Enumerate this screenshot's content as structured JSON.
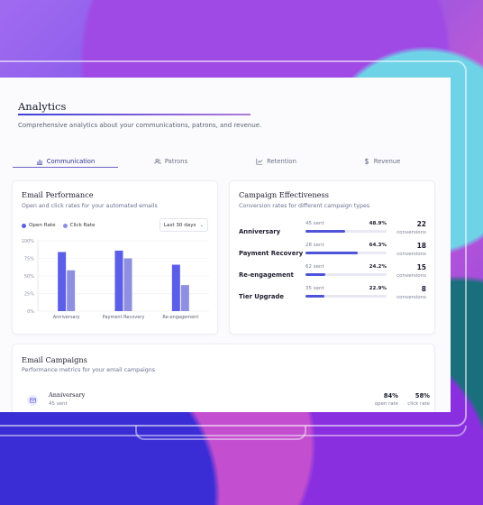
{
  "page": {
    "title": "Analytics",
    "subtitle": "Comprehensive analytics about your communications, patrons, and revenue."
  },
  "tabs": [
    {
      "label": "Communication",
      "icon": "bar-chart-icon",
      "active": true
    },
    {
      "label": "Patrons",
      "icon": "users-icon",
      "active": false
    },
    {
      "label": "Retention",
      "icon": "line-chart-icon",
      "active": false
    },
    {
      "label": "Revenue",
      "icon": "dollar-icon",
      "active": false
    }
  ],
  "email_performance": {
    "title": "Email Performance",
    "subtitle": "Open and click rates for your automated emails",
    "legend": {
      "open": "Open Rate",
      "click": "Click Rate"
    },
    "range_select": "Last 30 days",
    "colors": {
      "open": "#5b5ee6",
      "click": "#8e8fe0"
    }
  },
  "chart_data": {
    "type": "bar",
    "categories": [
      "Anniversary",
      "Payment Recovery",
      "Re-engagement"
    ],
    "series": [
      {
        "name": "Open Rate",
        "values": [
          84,
          86,
          66
        ]
      },
      {
        "name": "Click Rate",
        "values": [
          58,
          75,
          37
        ]
      }
    ],
    "ylim": [
      0,
      100
    ],
    "yticks": [
      "0%",
      "25%",
      "50%",
      "75%",
      "100%"
    ],
    "grid": true,
    "legend": "top-left"
  },
  "campaign_effectiveness": {
    "title": "Campaign Effectiveness",
    "subtitle": "Conversion rates for different campaign types",
    "conversions_label": "conversions",
    "rows": [
      {
        "name": "Anniversary",
        "sent": "45 sent",
        "rate": "48.9%",
        "fill": 0.489,
        "conversions": "22"
      },
      {
        "name": "Payment Recovery",
        "sent": "28 sent",
        "rate": "64.3%",
        "fill": 0.643,
        "conversions": "18"
      },
      {
        "name": "Re-engagement",
        "sent": "62 sent",
        "rate": "24.2%",
        "fill": 0.242,
        "conversions": "15"
      },
      {
        "name": "Tier Upgrade",
        "sent": "35 sent",
        "rate": "22.9%",
        "fill": 0.229,
        "conversions": "8"
      }
    ]
  },
  "email_campaigns": {
    "title": "Email Campaigns",
    "subtitle": "Performance metrics for your email campaigns",
    "rows": [
      {
        "name": "Anniversary",
        "sent": "45 sent",
        "open_rate": "84%",
        "open_label": "open rate",
        "click_rate": "58%",
        "click_label": "click rate"
      }
    ]
  }
}
